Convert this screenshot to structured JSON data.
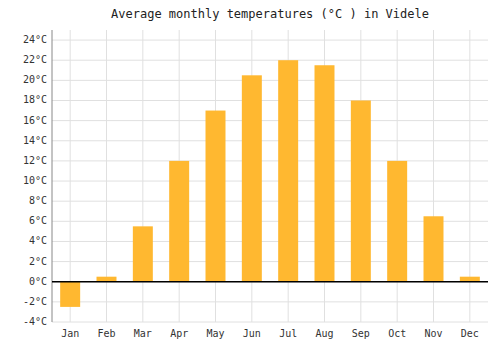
{
  "chart_data": {
    "type": "bar",
    "title": "Average monthly temperatures (°C ) in Videle",
    "categories": [
      "Jan",
      "Feb",
      "Mar",
      "Apr",
      "May",
      "Jun",
      "Jul",
      "Aug",
      "Sep",
      "Oct",
      "Nov",
      "Dec"
    ],
    "values": [
      -2.5,
      0.5,
      5.5,
      12.0,
      17.0,
      20.5,
      22.0,
      21.5,
      18.0,
      12.0,
      6.5,
      0.5
    ],
    "color": "#FFB830",
    "ylim": [
      -4,
      25
    ],
    "yticks": [
      {
        "value": -4,
        "label": "-4°C"
      },
      {
        "value": -2,
        "label": "-2°C"
      },
      {
        "value": 0,
        "label": "0°C"
      },
      {
        "value": 2,
        "label": "2°C"
      },
      {
        "value": 4,
        "label": "4°C"
      },
      {
        "value": 6,
        "label": "6°C"
      },
      {
        "value": 8,
        "label": "8°C"
      },
      {
        "value": 10,
        "label": "10°C"
      },
      {
        "value": 12,
        "label": "12°C"
      },
      {
        "value": 14,
        "label": "14°C"
      },
      {
        "value": 16,
        "label": "16°C"
      },
      {
        "value": 18,
        "label": "18°C"
      },
      {
        "value": 20,
        "label": "20°C"
      },
      {
        "value": 22,
        "label": "22°C"
      },
      {
        "value": 24,
        "label": "24°C"
      }
    ],
    "grid": true
  }
}
